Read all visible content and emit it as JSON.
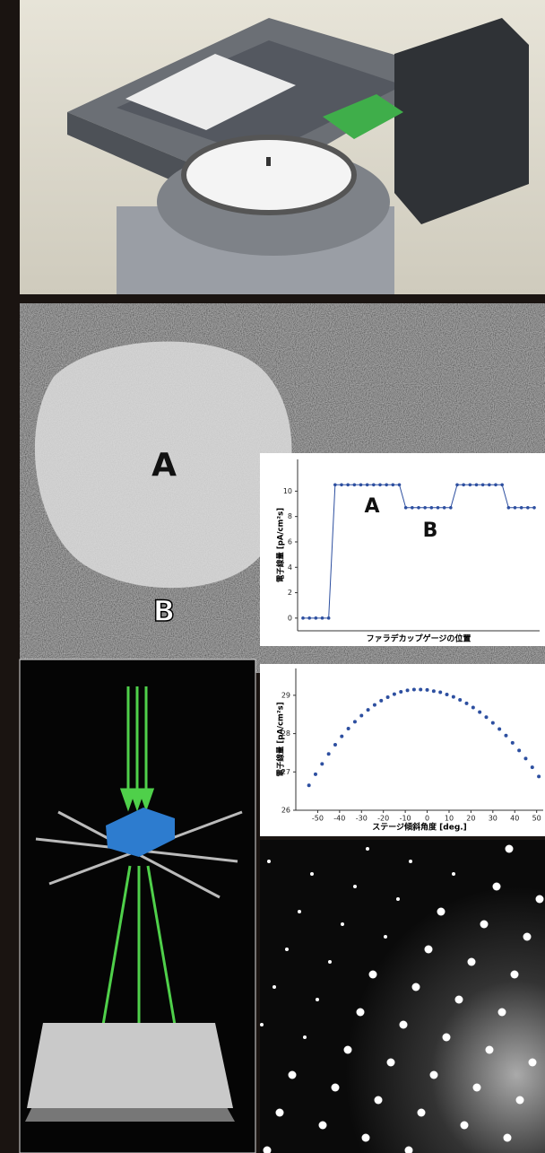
{
  "image_labels": [
    "A",
    "B"
  ],
  "chart_data": [
    {
      "type": "line",
      "y_label": "電子線量 [pA/cm²s]",
      "x_label": "ファラデカップゲージの位置",
      "annotations": [
        "A",
        "B"
      ],
      "color": "#2d4fa0",
      "values": [
        0,
        0,
        0,
        0,
        0,
        10.5,
        10.5,
        10.5,
        10.5,
        10.5,
        10.5,
        10.5,
        10.5,
        10.5,
        10.5,
        10.5,
        8.7,
        8.7,
        8.7,
        8.7,
        8.7,
        8.7,
        8.7,
        8.7,
        10.5,
        10.5,
        10.5,
        10.5,
        10.5,
        10.5,
        10.5,
        10.5,
        8.7,
        8.7,
        8.7,
        8.7,
        8.7
      ],
      "ylim": [
        -1,
        12.5
      ],
      "yticks": [
        0,
        2,
        4,
        6,
        8,
        10
      ]
    },
    {
      "type": "scatter",
      "y_label": "電子線量 [pA/cm²s]",
      "x_label": "ステージ傾斜角度 [deg.]",
      "color": "#2d4fa0",
      "x": [
        -54,
        -51,
        -48,
        -45,
        -42,
        -39,
        -36,
        -33,
        -30,
        -27,
        -24,
        -21,
        -18,
        -15,
        -12,
        -9,
        -6,
        -3,
        0,
        3,
        6,
        9,
        12,
        15,
        18,
        21,
        24,
        27,
        30,
        33,
        36,
        39,
        42,
        45,
        48,
        51
      ],
      "values": [
        26.65,
        26.94,
        27.21,
        27.47,
        27.71,
        27.93,
        28.13,
        28.31,
        28.47,
        28.62,
        28.75,
        28.86,
        28.95,
        29.03,
        29.09,
        29.13,
        29.15,
        29.15,
        29.14,
        29.11,
        29.08,
        29.02,
        28.96,
        28.88,
        28.79,
        28.68,
        28.56,
        28.43,
        28.28,
        28.12,
        27.95,
        27.76,
        27.56,
        27.35,
        27.12,
        26.88
      ],
      "xlim": [
        -60,
        53
      ],
      "ylim": [
        26,
        29.7
      ],
      "xticks": [
        -50,
        -40,
        -30,
        -20,
        -10,
        0,
        10,
        20,
        30,
        40,
        50
      ],
      "yticks": [
        26,
        27,
        28,
        29
      ]
    }
  ]
}
